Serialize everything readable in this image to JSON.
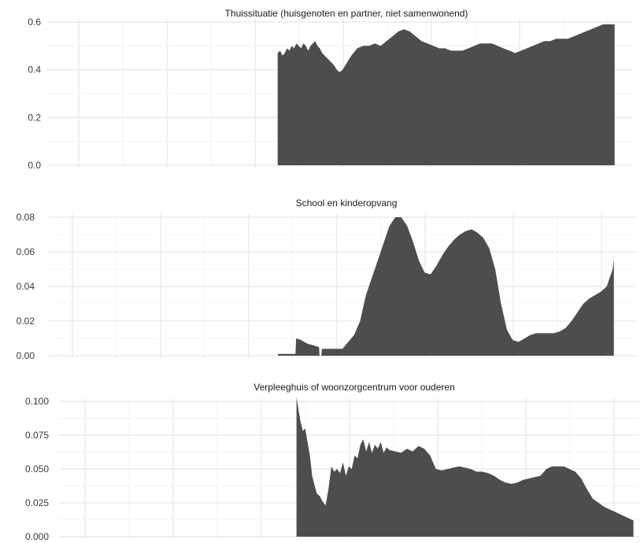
{
  "colors": {
    "fill": "#4d4d4d",
    "grid_major": "#e6e6e6",
    "grid_minor": "#f1f1f1",
    "background": "#ffffff"
  },
  "chart_data": [
    {
      "type": "area",
      "title": "Thuissituatie (huisgenoten en partner, niet samenwonend)",
      "ylim": [
        0,
        0.6
      ],
      "xlim": [
        0,
        1
      ],
      "y_ticks": [
        0.0,
        0.2,
        0.4,
        0.6
      ],
      "y_tick_labels": [
        "0.0",
        "0.2",
        "0.4",
        "0.6"
      ],
      "grid": true,
      "x_tick_labels": [],
      "x": [
        0.394,
        0.398,
        0.402,
        0.406,
        0.41,
        0.414,
        0.418,
        0.422,
        0.426,
        0.43,
        0.434,
        0.438,
        0.442,
        0.446,
        0.45,
        0.454,
        0.458,
        0.462,
        0.466,
        0.47,
        0.474,
        0.478,
        0.482,
        0.486,
        0.49,
        0.495,
        0.5,
        0.505,
        0.51,
        0.515,
        0.52,
        0.53,
        0.54,
        0.55,
        0.56,
        0.57,
        0.58,
        0.59,
        0.6,
        0.61,
        0.62,
        0.63,
        0.64,
        0.65,
        0.66,
        0.67,
        0.68,
        0.69,
        0.7,
        0.71,
        0.72,
        0.73,
        0.74,
        0.75,
        0.76,
        0.77,
        0.78,
        0.79,
        0.8,
        0.81,
        0.82,
        0.83,
        0.84,
        0.85,
        0.86,
        0.87,
        0.88,
        0.89,
        0.9,
        0.91,
        0.92,
        0.93,
        0.94,
        0.95,
        0.96,
        0.97
      ],
      "y": [
        0.47,
        0.48,
        0.46,
        0.47,
        0.49,
        0.48,
        0.5,
        0.49,
        0.51,
        0.5,
        0.49,
        0.51,
        0.5,
        0.48,
        0.5,
        0.51,
        0.52,
        0.5,
        0.49,
        0.47,
        0.46,
        0.45,
        0.44,
        0.43,
        0.42,
        0.4,
        0.39,
        0.4,
        0.42,
        0.44,
        0.46,
        0.49,
        0.5,
        0.5,
        0.51,
        0.5,
        0.52,
        0.54,
        0.56,
        0.57,
        0.56,
        0.54,
        0.52,
        0.51,
        0.5,
        0.49,
        0.49,
        0.48,
        0.48,
        0.48,
        0.49,
        0.5,
        0.51,
        0.51,
        0.51,
        0.5,
        0.49,
        0.48,
        0.47,
        0.48,
        0.49,
        0.5,
        0.51,
        0.52,
        0.52,
        0.53,
        0.53,
        0.53,
        0.54,
        0.55,
        0.56,
        0.57,
        0.58,
        0.59,
        0.59,
        0.59
      ]
    },
    {
      "type": "area",
      "title": "School en kinderopvang",
      "ylim": [
        0,
        0.08
      ],
      "xlim": [
        0,
        1
      ],
      "y_ticks": [
        0.0,
        0.02,
        0.04,
        0.06,
        0.08
      ],
      "y_tick_labels": [
        "0.00",
        "0.02",
        "0.04",
        "0.06",
        "0.08"
      ],
      "grid": true,
      "x_tick_labels": [],
      "x": [
        0.39,
        0.42,
        0.421,
        0.43,
        0.44,
        0.45,
        0.46,
        0.461,
        0.464,
        0.465,
        0.5,
        0.51,
        0.52,
        0.53,
        0.54,
        0.55,
        0.56,
        0.57,
        0.58,
        0.59,
        0.6,
        0.61,
        0.62,
        0.63,
        0.64,
        0.65,
        0.66,
        0.67,
        0.68,
        0.69,
        0.7,
        0.71,
        0.72,
        0.73,
        0.74,
        0.75,
        0.76,
        0.77,
        0.78,
        0.79,
        0.8,
        0.81,
        0.82,
        0.83,
        0.84,
        0.85,
        0.86,
        0.87,
        0.88,
        0.89,
        0.9,
        0.91,
        0.92,
        0.93,
        0.94,
        0.95,
        0.96,
        0.962
      ],
      "y": [
        0.001,
        0.001,
        0.01,
        0.009,
        0.007,
        0.006,
        0.005,
        0.0,
        0.0,
        0.004,
        0.004,
        0.008,
        0.012,
        0.02,
        0.035,
        0.045,
        0.055,
        0.065,
        0.075,
        0.08,
        0.08,
        0.075,
        0.066,
        0.055,
        0.048,
        0.047,
        0.052,
        0.058,
        0.063,
        0.067,
        0.07,
        0.072,
        0.073,
        0.071,
        0.068,
        0.062,
        0.05,
        0.03,
        0.015,
        0.009,
        0.008,
        0.01,
        0.012,
        0.013,
        0.013,
        0.013,
        0.013,
        0.014,
        0.016,
        0.02,
        0.025,
        0.03,
        0.033,
        0.035,
        0.037,
        0.04,
        0.05,
        0.056
      ]
    },
    {
      "type": "area",
      "title": "Verpleeghuis of woonzorgcentrum voor ouderen",
      "ylim": [
        0,
        0.1
      ],
      "xlim": [
        0,
        1
      ],
      "y_ticks": [
        0.0,
        0.025,
        0.05,
        0.075,
        0.1
      ],
      "y_tick_labels": [
        "0.000",
        "0.025",
        "0.050",
        "0.075",
        "0.100"
      ],
      "grid": true,
      "x_tick_labels": [],
      "x": [
        0.41,
        0.413,
        0.417,
        0.421,
        0.425,
        0.429,
        0.433,
        0.437,
        0.441,
        0.445,
        0.45,
        0.455,
        0.46,
        0.465,
        0.47,
        0.475,
        0.48,
        0.485,
        0.49,
        0.495,
        0.5,
        0.505,
        0.51,
        0.515,
        0.52,
        0.525,
        0.53,
        0.535,
        0.54,
        0.545,
        0.55,
        0.555,
        0.56,
        0.565,
        0.57,
        0.58,
        0.59,
        0.6,
        0.61,
        0.62,
        0.63,
        0.64,
        0.65,
        0.66,
        0.67,
        0.68,
        0.69,
        0.7,
        0.71,
        0.72,
        0.73,
        0.74,
        0.75,
        0.76,
        0.77,
        0.78,
        0.79,
        0.8,
        0.81,
        0.82,
        0.83,
        0.84,
        0.85,
        0.86,
        0.87,
        0.88,
        0.89,
        0.9,
        0.91,
        0.92,
        0.93,
        0.94,
        0.95,
        0.96,
        0.97,
        0.98,
        0.99
      ],
      "y": [
        0.103,
        0.095,
        0.085,
        0.078,
        0.08,
        0.07,
        0.06,
        0.045,
        0.038,
        0.032,
        0.03,
        0.026,
        0.023,
        0.035,
        0.052,
        0.048,
        0.05,
        0.047,
        0.055,
        0.045,
        0.052,
        0.05,
        0.06,
        0.058,
        0.068,
        0.072,
        0.063,
        0.07,
        0.062,
        0.068,
        0.065,
        0.07,
        0.062,
        0.066,
        0.064,
        0.063,
        0.062,
        0.065,
        0.063,
        0.067,
        0.065,
        0.06,
        0.05,
        0.049,
        0.05,
        0.051,
        0.052,
        0.051,
        0.05,
        0.048,
        0.048,
        0.047,
        0.045,
        0.042,
        0.04,
        0.039,
        0.04,
        0.042,
        0.043,
        0.044,
        0.045,
        0.05,
        0.052,
        0.052,
        0.052,
        0.05,
        0.048,
        0.043,
        0.035,
        0.028,
        0.025,
        0.022,
        0.02,
        0.018,
        0.016,
        0.014,
        0.012
      ]
    }
  ]
}
